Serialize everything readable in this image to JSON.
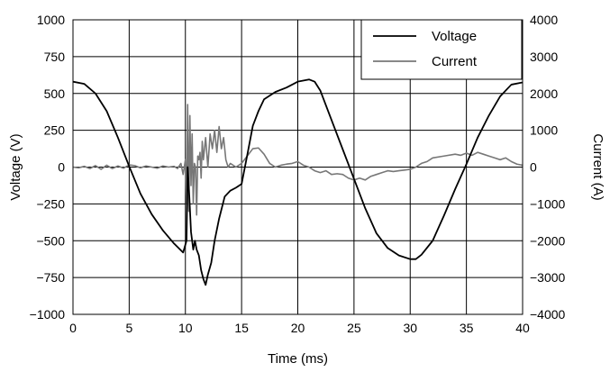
{
  "chart_data": {
    "type": "line",
    "title": "",
    "xlabel": "Time (ms)",
    "ylabel_left": "Voltage (V)",
    "ylabel_right": "Current (A)",
    "xlim": [
      0,
      40
    ],
    "ylim_left": [
      -1000,
      1000
    ],
    "ylim_right": [
      -4000,
      4000
    ],
    "x_ticks": [
      0,
      5,
      10,
      15,
      20,
      25,
      30,
      35,
      40
    ],
    "x_tick_labels": [
      "0",
      "5",
      "10",
      "15",
      "20",
      "25",
      "30",
      "35",
      "40"
    ],
    "y_left_ticks": [
      1000,
      750,
      500,
      250,
      0,
      -250,
      -500,
      -750,
      -1000
    ],
    "y_left_tick_labels": [
      "1000",
      "750",
      "500",
      "250",
      "0",
      "−250",
      "−500",
      "−750",
      "−1000"
    ],
    "y_right_ticks": [
      4000,
      3000,
      2000,
      1000,
      0,
      -1000,
      -2000,
      -3000,
      -4000
    ],
    "y_right_tick_labels": [
      "4000",
      "3000",
      "2000",
      "1000",
      "0",
      "−1000",
      "−2000",
      "−3000",
      "−4000"
    ],
    "grid": true,
    "legend": "top-right",
    "series": [
      {
        "name": "Voltage",
        "axis": "left",
        "color": "#000000",
        "points": [
          [
            0,
            580
          ],
          [
            1,
            565
          ],
          [
            2,
            500
          ],
          [
            3,
            380
          ],
          [
            4,
            200
          ],
          [
            5,
            5
          ],
          [
            6,
            -180
          ],
          [
            7,
            -320
          ],
          [
            8,
            -430
          ],
          [
            9,
            -520
          ],
          [
            9.8,
            -580
          ],
          [
            10.1,
            -500
          ],
          [
            10.2,
            0
          ],
          [
            10.35,
            -200
          ],
          [
            10.5,
            -440
          ],
          [
            10.7,
            -560
          ],
          [
            10.85,
            -500
          ],
          [
            11,
            -560
          ],
          [
            11.2,
            -600
          ],
          [
            11.4,
            -700
          ],
          [
            11.6,
            -760
          ],
          [
            11.8,
            -800
          ],
          [
            12,
            -730
          ],
          [
            12.3,
            -650
          ],
          [
            12.6,
            -500
          ],
          [
            13,
            -350
          ],
          [
            13.5,
            -200
          ],
          [
            14,
            -160
          ],
          [
            14.5,
            -140
          ],
          [
            15,
            -115
          ],
          [
            15.5,
            80
          ],
          [
            16,
            280
          ],
          [
            16.5,
            380
          ],
          [
            17,
            460
          ],
          [
            18,
            510
          ],
          [
            19,
            540
          ],
          [
            20,
            580
          ],
          [
            21,
            595
          ],
          [
            21.5,
            580
          ],
          [
            22,
            520
          ],
          [
            23,
            320
          ],
          [
            24,
            120
          ],
          [
            25,
            -80
          ],
          [
            26,
            -280
          ],
          [
            27,
            -450
          ],
          [
            28,
            -550
          ],
          [
            29,
            -600
          ],
          [
            30,
            -625
          ],
          [
            30.5,
            -625
          ],
          [
            31,
            -595
          ],
          [
            32,
            -500
          ],
          [
            33,
            -330
          ],
          [
            34,
            -150
          ],
          [
            35,
            20
          ],
          [
            36,
            200
          ],
          [
            37,
            350
          ],
          [
            38,
            480
          ],
          [
            39,
            560
          ],
          [
            40,
            575
          ]
        ]
      },
      {
        "name": "Current",
        "axis": "right",
        "color": "#777777",
        "points": [
          [
            0,
            0
          ],
          [
            0.5,
            -20
          ],
          [
            1,
            20
          ],
          [
            1.5,
            -40
          ],
          [
            2,
            40
          ],
          [
            2.5,
            -60
          ],
          [
            3,
            50
          ],
          [
            3.5,
            -40
          ],
          [
            4,
            30
          ],
          [
            4.5,
            -30
          ],
          [
            5,
            60
          ],
          [
            5.5,
            40
          ],
          [
            6,
            -20
          ],
          [
            6.5,
            30
          ],
          [
            7,
            0
          ],
          [
            7.5,
            -30
          ],
          [
            8,
            30
          ],
          [
            8.5,
            0
          ],
          [
            9,
            20
          ],
          [
            9.3,
            -40
          ],
          [
            9.6,
            100
          ],
          [
            9.8,
            -200
          ],
          [
            10.0,
            200
          ],
          [
            10.1,
            -1000
          ],
          [
            10.2,
            1700
          ],
          [
            10.3,
            -1200
          ],
          [
            10.4,
            1400
          ],
          [
            10.5,
            -500
          ],
          [
            10.6,
            900
          ],
          [
            10.7,
            -1000
          ],
          [
            10.8,
            100
          ],
          [
            10.9,
            0
          ],
          [
            11.0,
            -1300
          ],
          [
            11.1,
            300
          ],
          [
            11.2,
            200
          ],
          [
            11.3,
            400
          ],
          [
            11.4,
            -300
          ],
          [
            11.5,
            700
          ],
          [
            11.6,
            200
          ],
          [
            11.8,
            800
          ],
          [
            12.0,
            0
          ],
          [
            12.2,
            900
          ],
          [
            12.4,
            500
          ],
          [
            12.6,
            1000
          ],
          [
            12.8,
            400
          ],
          [
            13.0,
            1100
          ],
          [
            13.2,
            500
          ],
          [
            13.4,
            800
          ],
          [
            13.6,
            200
          ],
          [
            13.8,
            0
          ],
          [
            14.0,
            100
          ],
          [
            14.5,
            0
          ],
          [
            15,
            100
          ],
          [
            15.5,
            300
          ],
          [
            16,
            500
          ],
          [
            16.5,
            520
          ],
          [
            17,
            350
          ],
          [
            17.5,
            100
          ],
          [
            18,
            0
          ],
          [
            18.5,
            50
          ],
          [
            19,
            80
          ],
          [
            19.5,
            100
          ],
          [
            20,
            150
          ],
          [
            20.5,
            50
          ],
          [
            21,
            0
          ],
          [
            21.5,
            -100
          ],
          [
            22,
            -150
          ],
          [
            22.5,
            -100
          ],
          [
            23,
            -200
          ],
          [
            23.5,
            -180
          ],
          [
            24,
            -200
          ],
          [
            24.5,
            -300
          ],
          [
            25,
            -350
          ],
          [
            25.5,
            -300
          ],
          [
            26,
            -350
          ],
          [
            26.5,
            -250
          ],
          [
            27,
            -200
          ],
          [
            27.5,
            -150
          ],
          [
            28,
            -100
          ],
          [
            28.5,
            -120
          ],
          [
            29,
            -100
          ],
          [
            29.5,
            -80
          ],
          [
            30,
            -60
          ],
          [
            30.5,
            0
          ],
          [
            31,
            100
          ],
          [
            31.5,
            150
          ],
          [
            32,
            250
          ],
          [
            33,
            300
          ],
          [
            34,
            350
          ],
          [
            34.5,
            320
          ],
          [
            35,
            380
          ],
          [
            35.5,
            320
          ],
          [
            36,
            400
          ],
          [
            36.5,
            350
          ],
          [
            37,
            300
          ],
          [
            37.5,
            250
          ],
          [
            38,
            200
          ],
          [
            38.5,
            250
          ],
          [
            39,
            150
          ],
          [
            39.5,
            80
          ],
          [
            40,
            50
          ]
        ]
      }
    ]
  }
}
